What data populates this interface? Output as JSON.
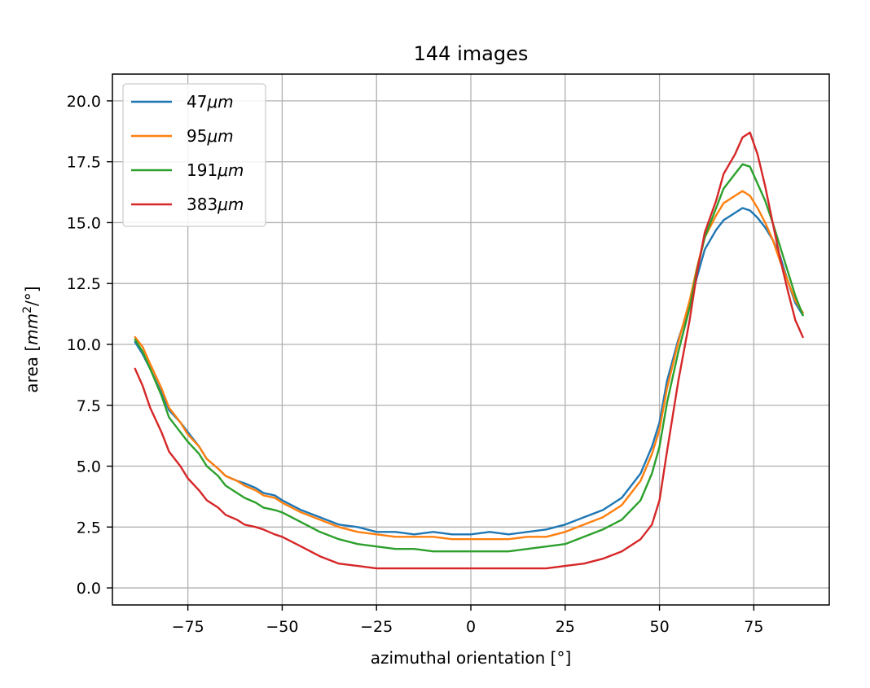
{
  "chart_data": {
    "type": "line",
    "title": "144 images",
    "xlabel": "azimuthal orientation [°]",
    "ylabel": "area [mm²/°]",
    "ylabel_parts": {
      "prefix": "area [",
      "base": "mm",
      "sup": "2",
      "suffix": "/°]"
    },
    "xlim": [
      -95,
      95
    ],
    "ylim": [
      -0.7,
      21.1
    ],
    "x_ticks": [
      -75,
      -50,
      -25,
      0,
      25,
      50,
      75
    ],
    "x_tick_labels": [
      "−75",
      "−50",
      "−25",
      "0",
      "25",
      "50",
      "75"
    ],
    "y_ticks": [
      0.0,
      2.5,
      5.0,
      7.5,
      10.0,
      12.5,
      15.0,
      17.5,
      20.0
    ],
    "y_tick_labels": [
      "0.0",
      "2.5",
      "5.0",
      "7.5",
      "10.0",
      "12.5",
      "15.0",
      "17.5",
      "20.0"
    ],
    "grid": true,
    "legend_position": "top-left",
    "x": [
      -89,
      -87,
      -85,
      -82,
      -80,
      -77,
      -75,
      -72,
      -70,
      -67,
      -65,
      -62,
      -60,
      -57,
      -55,
      -52,
      -50,
      -45,
      -40,
      -35,
      -30,
      -25,
      -20,
      -15,
      -10,
      -5,
      0,
      5,
      10,
      15,
      20,
      25,
      30,
      35,
      40,
      45,
      48,
      50,
      52,
      55,
      58,
      60,
      62,
      65,
      67,
      70,
      72,
      74,
      76,
      78,
      80,
      82,
      84,
      86,
      88
    ],
    "series": [
      {
        "name": "47μm",
        "label_base": "47",
        "label_unit": "μm",
        "color": "#1f77b4",
        "values": [
          10.1,
          9.6,
          9.0,
          8.0,
          7.3,
          6.8,
          6.4,
          5.8,
          5.3,
          4.9,
          4.6,
          4.4,
          4.3,
          4.1,
          3.9,
          3.8,
          3.6,
          3.2,
          2.9,
          2.6,
          2.5,
          2.3,
          2.3,
          2.2,
          2.3,
          2.2,
          2.2,
          2.3,
          2.2,
          2.3,
          2.4,
          2.6,
          2.9,
          3.2,
          3.7,
          4.7,
          5.8,
          6.8,
          8.5,
          10.2,
          11.6,
          12.8,
          13.9,
          14.7,
          15.1,
          15.4,
          15.6,
          15.5,
          15.2,
          14.8,
          14.3,
          13.6,
          12.6,
          11.7,
          11.2
        ]
      },
      {
        "name": "95μm",
        "label_base": "95",
        "label_unit": "μm",
        "color": "#ff7f0e",
        "values": [
          10.3,
          9.9,
          9.2,
          8.2,
          7.4,
          6.8,
          6.3,
          5.8,
          5.3,
          4.9,
          4.6,
          4.4,
          4.2,
          4.0,
          3.8,
          3.7,
          3.5,
          3.1,
          2.8,
          2.5,
          2.3,
          2.2,
          2.1,
          2.1,
          2.1,
          2.0,
          2.0,
          2.0,
          2.0,
          2.1,
          2.1,
          2.3,
          2.6,
          2.9,
          3.4,
          4.4,
          5.5,
          6.5,
          8.2,
          10.1,
          11.8,
          13.2,
          14.4,
          15.3,
          15.8,
          16.1,
          16.3,
          16.1,
          15.6,
          15.0,
          14.3,
          13.4,
          12.6,
          11.8,
          11.3
        ]
      },
      {
        "name": "191μm",
        "label_base": "191",
        "label_unit": "μm",
        "color": "#2ca02c",
        "values": [
          10.2,
          9.7,
          9.0,
          7.9,
          7.0,
          6.4,
          6.0,
          5.5,
          5.0,
          4.6,
          4.2,
          3.9,
          3.7,
          3.5,
          3.3,
          3.2,
          3.1,
          2.7,
          2.3,
          2.0,
          1.8,
          1.7,
          1.6,
          1.6,
          1.5,
          1.5,
          1.5,
          1.5,
          1.5,
          1.6,
          1.7,
          1.8,
          2.1,
          2.4,
          2.8,
          3.6,
          4.7,
          5.8,
          7.6,
          9.7,
          11.5,
          13.1,
          14.4,
          15.6,
          16.4,
          17.0,
          17.4,
          17.3,
          16.6,
          15.9,
          15.0,
          14.0,
          13.0,
          12.0,
          11.2
        ]
      },
      {
        "name": "383μm",
        "label_base": "383",
        "label_unit": "μm",
        "color": "#d62728",
        "values": [
          9.0,
          8.3,
          7.4,
          6.4,
          5.6,
          5.0,
          4.5,
          4.0,
          3.6,
          3.3,
          3.0,
          2.8,
          2.6,
          2.5,
          2.4,
          2.2,
          2.1,
          1.7,
          1.3,
          1.0,
          0.9,
          0.8,
          0.8,
          0.8,
          0.8,
          0.8,
          0.8,
          0.8,
          0.8,
          0.8,
          0.8,
          0.9,
          1.0,
          1.2,
          1.5,
          2.0,
          2.6,
          3.6,
          5.6,
          8.5,
          11.0,
          13.0,
          14.6,
          15.9,
          17.0,
          17.8,
          18.5,
          18.7,
          17.8,
          16.5,
          15.0,
          13.5,
          12.2,
          11.0,
          10.3
        ]
      }
    ]
  }
}
